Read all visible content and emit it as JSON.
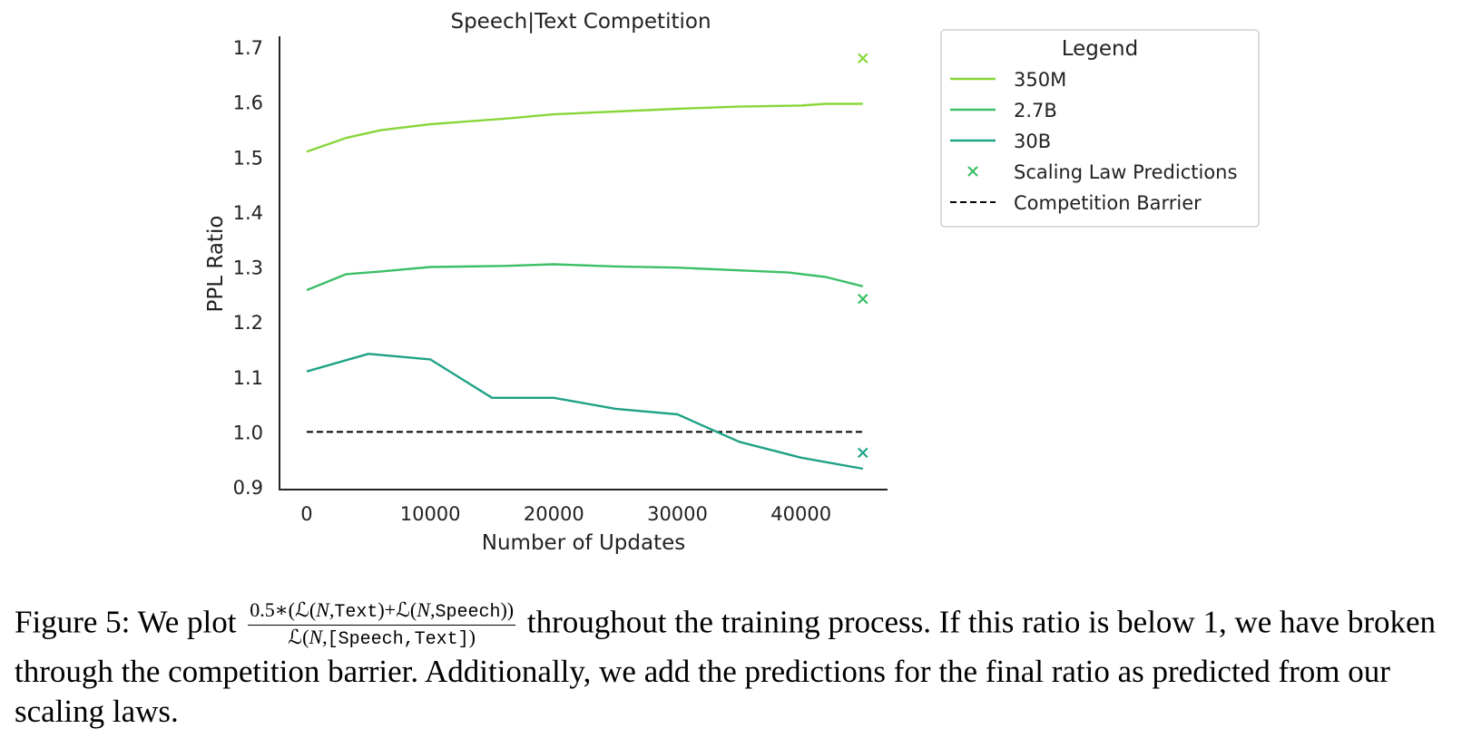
{
  "chart_data": {
    "type": "line",
    "title": "Speech|Text Competition",
    "xlabel": "Number of Updates",
    "ylabel": "PPL Ratio",
    "xlim": [
      -2200,
      47000
    ],
    "ylim": [
      0.895,
      1.72
    ],
    "xticks": [
      0,
      10000,
      20000,
      30000,
      40000
    ],
    "xtick_labels": [
      "0",
      "10000",
      "20000",
      "30000",
      "40000"
    ],
    "yticks": [
      0.9,
      1.0,
      1.1,
      1.2,
      1.3,
      1.4,
      1.5,
      1.6,
      1.7
    ],
    "ytick_labels": [
      "0.9",
      "1.0",
      "1.1",
      "1.2",
      "1.3",
      "1.4",
      "1.5",
      "1.6",
      "1.7"
    ],
    "grid": false,
    "legend_title": "Legend",
    "legend_position": "outside-top-right",
    "series": [
      {
        "name": "350M",
        "color": "#88d63a",
        "x": [
          0,
          3200,
          6000,
          10000,
          16000,
          20000,
          25000,
          30000,
          35000,
          40000,
          42000,
          45000
        ],
        "y": [
          1.51,
          1.535,
          1.549,
          1.56,
          1.57,
          1.578,
          1.583,
          1.588,
          1.592,
          1.594,
          1.597,
          1.597
        ]
      },
      {
        "name": "2.7B",
        "color": "#3cbf66",
        "x": [
          0,
          3200,
          6000,
          10000,
          16000,
          20000,
          25000,
          30000,
          35000,
          39000,
          42000,
          45000
        ],
        "y": [
          1.258,
          1.287,
          1.292,
          1.3,
          1.302,
          1.305,
          1.301,
          1.299,
          1.294,
          1.29,
          1.282,
          1.265
        ]
      },
      {
        "name": "30B",
        "color": "#1fa287",
        "x": [
          0,
          5000,
          10000,
          15000,
          20000,
          25000,
          30000,
          35000,
          40000,
          45000
        ],
        "y": [
          1.11,
          1.142,
          1.132,
          1.062,
          1.062,
          1.042,
          1.032,
          0.982,
          0.953,
          0.933
        ]
      }
    ],
    "predictions": {
      "name": "Scaling Law Predictions",
      "marker": "x",
      "points": [
        {
          "x": 45000,
          "y": 1.68,
          "color": "#88d63a"
        },
        {
          "x": 45000,
          "y": 1.242,
          "color": "#3cbf66"
        },
        {
          "x": 45000,
          "y": 0.962,
          "color": "#1fa287"
        }
      ],
      "legend_color": "#3cbf66"
    },
    "barrier": {
      "name": "Competition Barrier",
      "y": 1.0,
      "x_range": [
        0,
        45000
      ],
      "color": "#000000",
      "style": "dashed"
    }
  },
  "caption": {
    "prefix": "Figure 5: We plot",
    "num_pre": "0.5∗(",
    "num_l1": "ℒ(",
    "num_n1": "N",
    "num_t1": "Text",
    "num_mid": ")+",
    "num_l2": "ℒ(",
    "num_n2": "N",
    "num_t2": "Speech",
    "num_end": "))",
    "den_l": "ℒ(",
    "den_n": "N",
    "den_t": "[Speech,Text]",
    "den_end": ")",
    "suffix": "throughout the training process. If this ratio is below 1, we have broken through the competition barrier. Additionally, we add the predictions for the final ratio as predicted from our scaling laws."
  }
}
